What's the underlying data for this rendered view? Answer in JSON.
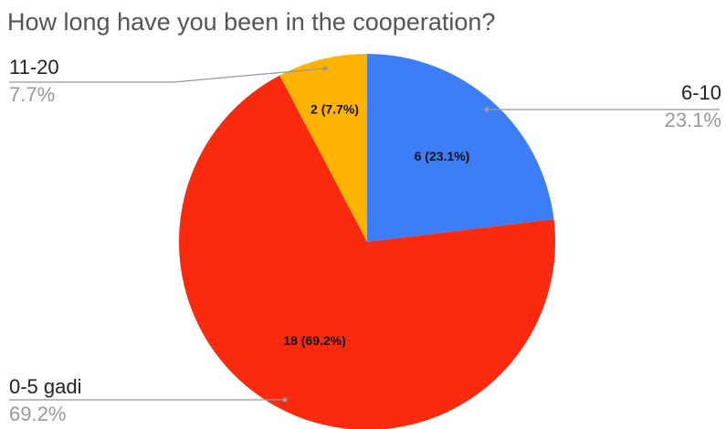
{
  "chart_data": {
    "type": "pie",
    "title": "How long have you been in the cooperation?",
    "categories": [
      "6-10",
      "0-5 gadi",
      "11-20"
    ],
    "values": [
      6,
      18,
      2
    ],
    "value_labels": [
      "6 (23.1%)",
      "18 (69.2%)",
      "2 (7.7%)"
    ],
    "percent_labels": [
      "23.1%",
      "69.2%",
      "7.7%"
    ],
    "colors": [
      "#3d7ef7",
      "#fa2a0e",
      "#fdb400"
    ]
  }
}
